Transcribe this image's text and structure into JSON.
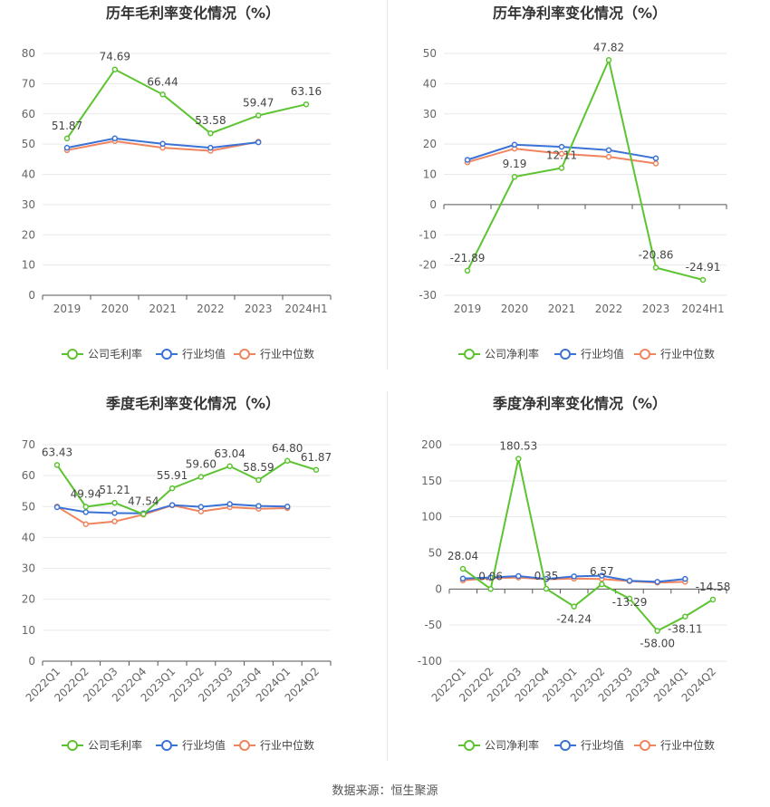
{
  "colors": {
    "company": "#5cc430",
    "industry_avg": "#3b72d6",
    "industry_median": "#f0845f",
    "grid": "#e9e9e9",
    "axis": "#555555",
    "text": "#444444",
    "title": "#333333"
  },
  "source": "数据来源：恒生聚源",
  "chart_data": [
    {
      "type": "line",
      "title": "历年毛利率变化情况（%）",
      "categories": [
        "2019",
        "2020",
        "2021",
        "2022",
        "2023",
        "2024H1"
      ],
      "ylim": [
        0,
        80
      ],
      "yticks": [
        0,
        10,
        20,
        30,
        40,
        50,
        60,
        70,
        80
      ],
      "grid": true,
      "legend": "bottom",
      "rotate_labels": false,
      "series": [
        {
          "name": "公司毛利率",
          "key": "company",
          "values": [
            51.87,
            74.69,
            66.44,
            53.58,
            59.47,
            63.16
          ],
          "labels": [
            "51.87",
            "74.69",
            "66.44",
            "53.58",
            "59.47",
            "63.16"
          ]
        },
        {
          "name": "行业均值",
          "key": "industry_avg",
          "values": [
            48.8,
            51.9,
            50.1,
            48.8,
            50.6,
            null
          ]
        },
        {
          "name": "行业中位数",
          "key": "industry_median",
          "values": [
            48.0,
            51.0,
            48.8,
            47.8,
            50.8,
            null
          ]
        }
      ]
    },
    {
      "type": "line",
      "title": "历年净利率变化情况（%）",
      "categories": [
        "2019",
        "2020",
        "2021",
        "2022",
        "2023",
        "2024H1"
      ],
      "ylim": [
        -30,
        50
      ],
      "yticks": [
        -30,
        -20,
        -10,
        0,
        10,
        20,
        30,
        40,
        50
      ],
      "grid": true,
      "legend": "bottom",
      "rotate_labels": false,
      "series": [
        {
          "name": "公司净利率",
          "key": "company",
          "values": [
            -21.89,
            9.19,
            12.11,
            47.82,
            -20.86,
            -24.91
          ],
          "labels": [
            "-21.89",
            "9.19",
            "12.11",
            "47.82",
            "-20.86",
            "-24.91"
          ]
        },
        {
          "name": "行业均值",
          "key": "industry_avg",
          "values": [
            14.8,
            19.8,
            19.1,
            18.0,
            15.3,
            null
          ]
        },
        {
          "name": "行业中位数",
          "key": "industry_median",
          "values": [
            14.0,
            18.5,
            16.8,
            15.8,
            13.6,
            null
          ]
        }
      ]
    },
    {
      "type": "line",
      "title": "季度毛利率变化情况（%）",
      "categories": [
        "2022Q1",
        "2022Q2",
        "2022Q3",
        "2022Q4",
        "2023Q1",
        "2023Q2",
        "2023Q3",
        "2023Q4",
        "2024Q1",
        "2024Q2"
      ],
      "ylim": [
        0,
        70
      ],
      "yticks": [
        0,
        10,
        20,
        30,
        40,
        50,
        60,
        70
      ],
      "grid": true,
      "legend": "bottom",
      "rotate_labels": true,
      "series": [
        {
          "name": "公司毛利率",
          "key": "company",
          "values": [
            63.43,
            49.94,
            51.21,
            47.54,
            55.91,
            59.6,
            63.04,
            58.59,
            64.8,
            61.87
          ],
          "labels": [
            "63.43",
            "49.94",
            "51.21",
            "47.54",
            "55.91",
            "59.60",
            "63.04",
            "58.59",
            "64.80",
            "61.87"
          ]
        },
        {
          "name": "行业均值",
          "key": "industry_avg",
          "values": [
            49.8,
            48.2,
            47.9,
            47.8,
            50.5,
            49.9,
            50.8,
            50.2,
            50.0,
            null
          ]
        },
        {
          "name": "行业中位数",
          "key": "industry_median",
          "values": [
            50.0,
            44.3,
            45.2,
            47.4,
            50.4,
            48.4,
            49.8,
            49.3,
            49.5,
            null
          ]
        }
      ]
    },
    {
      "type": "line",
      "title": "季度净利率变化情况（%）",
      "categories": [
        "2022Q1",
        "2022Q2",
        "2022Q3",
        "2022Q4",
        "2023Q1",
        "2023Q2",
        "2023Q3",
        "2023Q4",
        "2024Q1",
        "2024Q2"
      ],
      "ylim": [
        -100,
        200
      ],
      "yticks": [
        -100,
        -50,
        0,
        50,
        100,
        150,
        200
      ],
      "grid": true,
      "legend": "bottom",
      "rotate_labels": true,
      "series": [
        {
          "name": "公司净利率",
          "key": "company",
          "values": [
            28.04,
            0.06,
            180.53,
            0.35,
            -24.24,
            6.57,
            -13.29,
            -58.0,
            -38.11,
            -14.58
          ],
          "labels": [
            "28.04",
            "0.06",
            "180.53",
            "0.35",
            "-24.24",
            "6.57",
            "-13.29",
            "-58.00",
            "-38.11",
            "-14.58"
          ]
        },
        {
          "name": "行业均值",
          "key": "industry_avg",
          "values": [
            14.5,
            16.0,
            18.0,
            14.0,
            17.5,
            18.5,
            11.5,
            10.0,
            14.0,
            null
          ]
        },
        {
          "name": "行业中位数",
          "key": "industry_median",
          "values": [
            12.0,
            15.0,
            16.0,
            13.5,
            14.5,
            14.0,
            11.0,
            9.0,
            10.0,
            null
          ]
        }
      ]
    }
  ]
}
